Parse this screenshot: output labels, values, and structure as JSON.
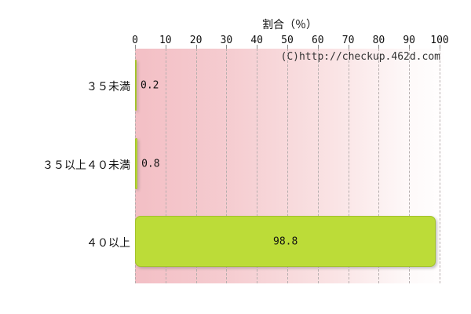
{
  "chart_data": {
    "type": "bar",
    "orientation": "horizontal",
    "title": "割合（％）",
    "categories": [
      "３５未満",
      "３５以上４０未満",
      "４０以上"
    ],
    "values": [
      0.2,
      0.8,
      98.8
    ],
    "value_labels": [
      "0.2",
      "0.8",
      "98.8"
    ],
    "xlim": [
      0,
      100
    ],
    "xticks": [
      0,
      10,
      20,
      30,
      40,
      50,
      60,
      70,
      80,
      90,
      100
    ],
    "grid": "vertical-dashed",
    "legend": "none",
    "watermark": "(C)http://checkup.462d.com",
    "colors": {
      "bar_fill": "#bcdc38",
      "bar_border": "#a3c32c",
      "plot_bg_left": "#f3bfc5",
      "plot_bg_right": "#fffefe",
      "gridline": "#b6aeae",
      "text": "#111111",
      "watermark_text": "#333333"
    }
  }
}
